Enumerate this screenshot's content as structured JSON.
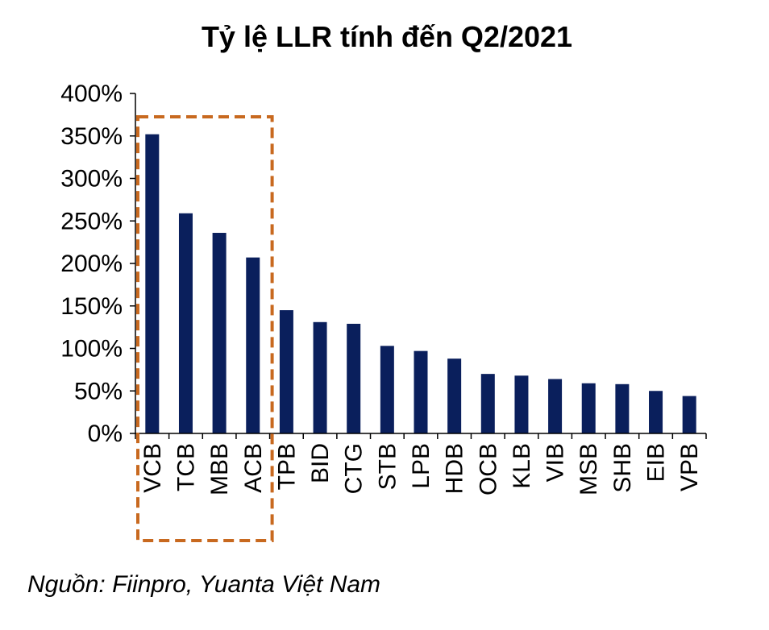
{
  "chart_data": {
    "type": "bar",
    "title": "Tỷ lệ LLR tính đến Q2/2021",
    "categories": [
      "VCB",
      "TCB",
      "MBB",
      "ACB",
      "TPB",
      "BID",
      "CTG",
      "STB",
      "LPB",
      "HDB",
      "OCB",
      "KLB",
      "VIB",
      "MSB",
      "SHB",
      "EIB",
      "VPB"
    ],
    "values": [
      352,
      259,
      236,
      207,
      145,
      131,
      129,
      103,
      97,
      88,
      70,
      68,
      64,
      59,
      58,
      50,
      44
    ],
    "ylim": [
      0,
      400
    ],
    "yticks": [
      0,
      50,
      100,
      150,
      200,
      250,
      300,
      350,
      400
    ],
    "ytick_labels": [
      "0%",
      "50%",
      "100%",
      "150%",
      "200%",
      "250%",
      "300%",
      "350%",
      "400%"
    ],
    "grid": false,
    "bar_color": "#0a1f5c",
    "highlight": {
      "categories": [
        "VCB",
        "TCB",
        "MBB",
        "ACB"
      ],
      "style": "dashed-box",
      "color": "#c8691f"
    }
  },
  "source": "Nguồn: Fiinpro, Yuanta Việt Nam"
}
